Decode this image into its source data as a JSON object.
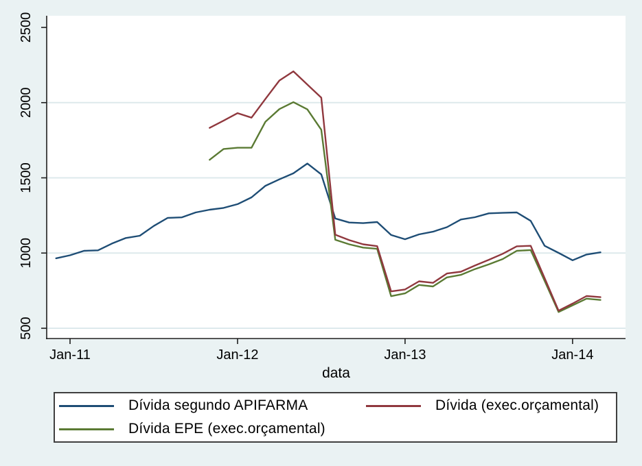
{
  "figure": {
    "background_color": "#eaf2f3",
    "plot_background": "#ffffff",
    "grid_color": "#dde9ec",
    "axis_color": "#1e1e1e",
    "text_color": "#000000",
    "legend_background": "#ffffff",
    "legend_border_color": "#3f3f3f"
  },
  "chart_data": {
    "type": "line",
    "title": "",
    "xlabel": "data",
    "ylabel": "",
    "grid": true,
    "legend_position": "bottom",
    "x_tick_labels": [
      "Jan-11",
      "Jan-12",
      "Jan-13",
      "Jan-14"
    ],
    "y_ticks": [
      500,
      1000,
      1500,
      2000,
      2500
    ],
    "gridline_values": [
      500,
      1000,
      1500,
      2000
    ],
    "ylim": [
      430,
      2580
    ],
    "x": [
      "Dec-10",
      "Jan-11",
      "Feb-11",
      "Mar-11",
      "Apr-11",
      "May-11",
      "Jun-11",
      "Jul-11",
      "Aug-11",
      "Sep-11",
      "Oct-11",
      "Nov-11",
      "Dec-11",
      "Jan-12",
      "Feb-12",
      "Mar-12",
      "Apr-12",
      "May-12",
      "Jun-12",
      "Jul-12",
      "Aug-12",
      "Sep-12",
      "Oct-12",
      "Nov-12",
      "Dec-12",
      "Jan-13",
      "Feb-13",
      "Mar-13",
      "Apr-13",
      "May-13",
      "Jun-13",
      "Jul-13",
      "Aug-13",
      "Sep-13",
      "Oct-13",
      "Nov-13",
      "Dec-13",
      "Jan-14",
      "Feb-14",
      "Mar-14"
    ],
    "series": [
      {
        "name": "Dívida segundo APIFARMA",
        "color": "#1e4d75",
        "start_index": 0,
        "values": [
          965,
          985,
          1015,
          1018,
          1063,
          1100,
          1115,
          1180,
          1234,
          1237,
          1270,
          1288,
          1300,
          1325,
          1370,
          1447,
          1490,
          1530,
          1595,
          1523,
          1230,
          1203,
          1199,
          1206,
          1120,
          1092,
          1124,
          1142,
          1172,
          1223,
          1238,
          1264,
          1267,
          1270,
          1214,
          1048,
          1001,
          952,
          990,
          1005
        ]
      },
      {
        "name": "Dívida (exec.orçamental)",
        "color": "#90383e",
        "start_index": 11,
        "values": [
          1832,
          1880,
          1930,
          1900,
          2025,
          2147,
          2208,
          2120,
          2033,
          1122,
          1086,
          1058,
          1046,
          745,
          758,
          812,
          802,
          864,
          876,
          917,
          955,
          995,
          1045,
          1048,
          833,
          617,
          664,
          714,
          707
        ]
      },
      {
        "name": "Dívida EPE (exec.orçamental)",
        "color": "#5a7a33",
        "start_index": 11,
        "values": [
          1620,
          1692,
          1700,
          1700,
          1873,
          1957,
          2003,
          1955,
          1820,
          1088,
          1058,
          1036,
          1028,
          713,
          732,
          788,
          778,
          838,
          855,
          893,
          925,
          960,
          1015,
          1020,
          815,
          608,
          652,
          697,
          688
        ]
      }
    ]
  }
}
